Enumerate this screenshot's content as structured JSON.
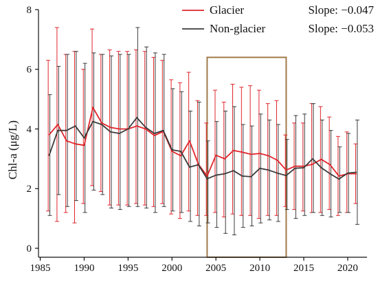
{
  "chart_data": {
    "type": "line",
    "title": "",
    "xlabel": "",
    "ylabel": "Chl-a (μg/L)",
    "xlim": [
      1984.8,
      2022.2
    ],
    "ylim": [
      -0.3,
      8
    ],
    "xticks": [
      1985,
      1990,
      1995,
      2000,
      2005,
      2010,
      2015,
      2020
    ],
    "yticks": [
      0,
      2,
      4,
      6,
      8
    ],
    "grid": false,
    "legend_position": "top-right",
    "highlight_box": {
      "x_range": [
        2004,
        2013
      ],
      "y_range": [
        -0.3,
        6.4
      ],
      "color": "#a07a4a"
    },
    "x": [
      1986,
      1987,
      1988,
      1989,
      1990,
      1991,
      1992,
      1993,
      1994,
      1995,
      1996,
      1997,
      1998,
      1999,
      2000,
      2001,
      2002,
      2003,
      2004,
      2005,
      2006,
      2007,
      2008,
      2009,
      2010,
      2011,
      2012,
      2013,
      2014,
      2015,
      2016,
      2017,
      2018,
      2019,
      2020,
      2021
    ],
    "series": [
      {
        "name": "Glacier",
        "slope_label": "Slope: −0.047",
        "color": "#e0242a",
        "values": [
          3.8,
          4.15,
          3.6,
          3.5,
          3.45,
          4.72,
          4.2,
          4.05,
          4.0,
          4.0,
          4.1,
          4.0,
          3.78,
          3.92,
          3.25,
          3.1,
          3.6,
          2.82,
          2.42,
          3.12,
          3.0,
          3.28,
          3.22,
          3.15,
          3.18,
          3.1,
          2.95,
          2.62,
          2.75,
          2.75,
          2.82,
          2.98,
          2.8,
          2.42,
          2.5,
          2.5
        ],
        "upper": [
          6.3,
          7.4,
          6.5,
          6.6,
          6.0,
          7.35,
          6.5,
          6.65,
          6.6,
          6.6,
          6.65,
          6.6,
          6.4,
          6.3,
          5.65,
          5.55,
          5.9,
          4.95,
          4.2,
          5.3,
          4.9,
          5.5,
          5.4,
          5.45,
          5.3,
          4.85,
          4.95,
          3.8,
          4.2,
          4.2,
          4.85,
          4.75,
          4.4,
          3.75,
          3.9,
          3.5
        ],
        "lower": [
          1.25,
          0.9,
          1.2,
          0.85,
          1.5,
          2.1,
          1.9,
          1.45,
          1.45,
          1.45,
          1.5,
          1.45,
          1.4,
          1.5,
          1.15,
          1.0,
          1.25,
          1.1,
          1.1,
          1.2,
          1.05,
          1.15,
          1.1,
          1.1,
          1.0,
          1.1,
          1.1,
          1.4,
          1.3,
          1.25,
          1.2,
          1.2,
          1.3,
          1.1,
          1.2,
          1.5
        ]
      },
      {
        "name": "Non-glacier",
        "slope_label": "Slope: −0.053",
        "color": "#3a3a3a",
        "values": [
          3.1,
          3.95,
          3.95,
          4.1,
          3.7,
          4.25,
          4.15,
          3.9,
          3.85,
          4.0,
          4.38,
          4.05,
          3.85,
          3.95,
          3.3,
          3.25,
          2.72,
          2.8,
          2.33,
          2.45,
          2.5,
          2.6,
          2.42,
          2.4,
          2.68,
          2.62,
          2.52,
          2.44,
          2.68,
          2.7,
          3.0,
          2.7,
          2.5,
          2.32,
          2.52,
          2.55
        ],
        "upper": [
          5.15,
          6.1,
          6.5,
          6.6,
          6.2,
          6.55,
          6.5,
          6.45,
          6.5,
          6.5,
          7.4,
          6.75,
          6.55,
          6.5,
          5.35,
          5.25,
          4.6,
          4.9,
          3.6,
          4.25,
          4.6,
          4.75,
          4.15,
          4.1,
          4.5,
          4.3,
          4.15,
          3.65,
          4.45,
          4.5,
          4.85,
          4.3,
          3.95,
          3.4,
          3.85,
          4.3
        ],
        "lower": [
          1.1,
          1.8,
          1.4,
          1.6,
          1.2,
          1.95,
          1.8,
          1.35,
          1.3,
          1.4,
          1.4,
          1.35,
          1.2,
          1.4,
          1.25,
          1.2,
          0.9,
          0.75,
          0.85,
          0.7,
          0.5,
          0.45,
          0.7,
          0.75,
          0.85,
          0.95,
          0.9,
          1.3,
          1.0,
          1.1,
          1.2,
          1.1,
          1.05,
          1.2,
          1.2,
          0.8
        ]
      }
    ]
  }
}
